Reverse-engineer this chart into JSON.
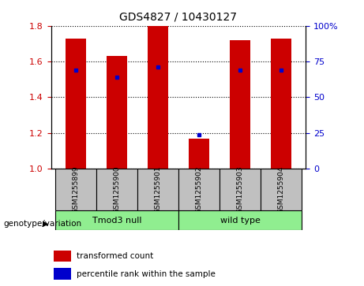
{
  "title": "GDS4827 / 10430127",
  "samples": [
    "GSM1255899",
    "GSM1255900",
    "GSM1255901",
    "GSM1255902",
    "GSM1255903",
    "GSM1255904"
  ],
  "red_bar_heights": [
    1.73,
    1.63,
    1.8,
    1.17,
    1.72,
    1.73
  ],
  "blue_dot_values": [
    1.55,
    1.51,
    1.57,
    1.19,
    1.55,
    1.55
  ],
  "ylim": [
    1.0,
    1.8
  ],
  "y2lim": [
    0,
    100
  ],
  "yticks": [
    1.0,
    1.2,
    1.4,
    1.6,
    1.8
  ],
  "y2ticks": [
    0,
    25,
    50,
    75,
    100
  ],
  "y2ticklabels": [
    "0",
    "25",
    "50",
    "75",
    "100%"
  ],
  "groups": [
    {
      "label": "Tmod3 null",
      "indices": [
        0,
        1,
        2
      ],
      "color": "#90EE90"
    },
    {
      "label": "wild type",
      "indices": [
        3,
        4,
        5
      ],
      "color": "#90EE90"
    }
  ],
  "group_label_prefix": "genotype/variation",
  "bar_color": "#CC0000",
  "dot_color": "#0000CC",
  "bar_width": 0.5,
  "bg_color": "#FFFFFF",
  "plot_bg_color": "#FFFFFF",
  "tick_color_left": "#CC0000",
  "tick_color_right": "#0000CC",
  "legend_red": "transformed count",
  "legend_blue": "percentile rank within the sample",
  "x_label_bg": "#C0C0C0"
}
